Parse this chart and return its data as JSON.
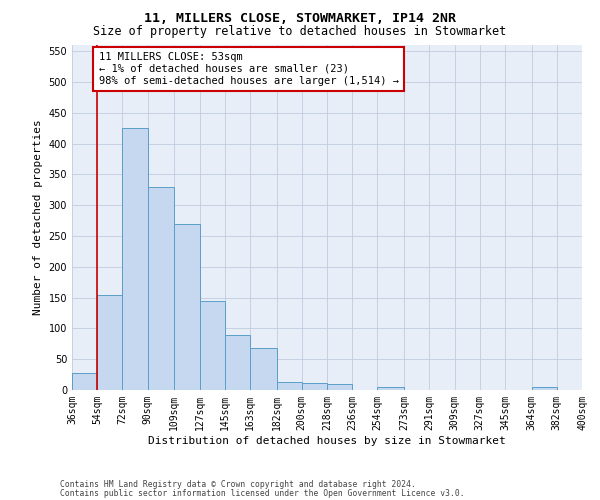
{
  "title": "11, MILLERS CLOSE, STOWMARKET, IP14 2NR",
  "subtitle": "Size of property relative to detached houses in Stowmarket",
  "xlabel": "Distribution of detached houses by size in Stowmarket",
  "ylabel": "Number of detached properties",
  "bar_values": [
    28,
    155,
    425,
    330,
    270,
    145,
    90,
    68,
    13,
    11,
    10,
    0,
    5,
    0,
    0,
    0,
    0,
    0,
    5,
    0
  ],
  "bar_edges": [
    36,
    54,
    72,
    90,
    109,
    127,
    145,
    163,
    182,
    200,
    218,
    236,
    254,
    273,
    291,
    309,
    327,
    345,
    364,
    382,
    400
  ],
  "bar_labels": [
    "36sqm",
    "54sqm",
    "72sqm",
    "90sqm",
    "109sqm",
    "127sqm",
    "145sqm",
    "163sqm",
    "182sqm",
    "200sqm",
    "218sqm",
    "236sqm",
    "254sqm",
    "273sqm",
    "291sqm",
    "309sqm",
    "327sqm",
    "345sqm",
    "364sqm",
    "382sqm",
    "400sqm"
  ],
  "property_line_x": 54,
  "bar_color": "#c5d8f0",
  "bar_edge_color": "#5a9ec9",
  "vline_color": "#cc0000",
  "annotation_text": "11 MILLERS CLOSE: 53sqm\n← 1% of detached houses are smaller (23)\n98% of semi-detached houses are larger (1,514) →",
  "annotation_box_color": "#ffffff",
  "annotation_box_edge": "#cc0000",
  "ylim": [
    0,
    560
  ],
  "yticks": [
    0,
    50,
    100,
    150,
    200,
    250,
    300,
    350,
    400,
    450,
    500,
    550
  ],
  "grid_color": "#c0cce0",
  "background_color": "#e8eef8",
  "footer1": "Contains HM Land Registry data © Crown copyright and database right 2024.",
  "footer2": "Contains public sector information licensed under the Open Government Licence v3.0.",
  "title_fontsize": 9.5,
  "subtitle_fontsize": 8.5,
  "xlabel_fontsize": 8,
  "ylabel_fontsize": 8,
  "tick_fontsize": 7,
  "annotation_fontsize": 7.5,
  "footer_fontsize": 5.8
}
